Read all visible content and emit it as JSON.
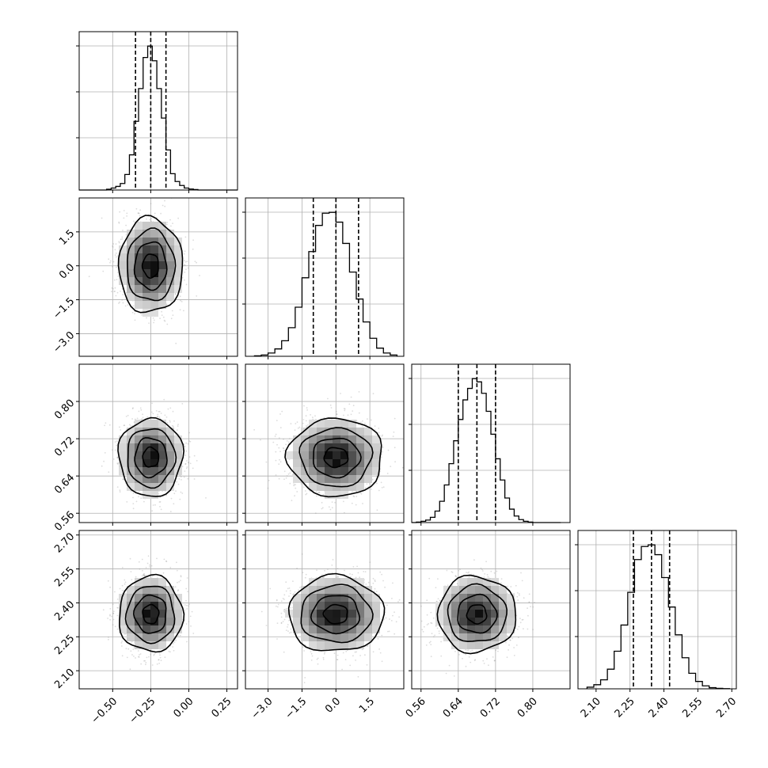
{
  "chart_data": {
    "type": "corner",
    "title": "",
    "parameters": [
      {
        "id": "p0",
        "mean": -0.25,
        "sd": 0.1,
        "range": [
          -0.72,
          0.32
        ],
        "ticks": [
          -0.5,
          -0.25,
          0.0,
          0.25
        ],
        "tick_labels": [
          "−0.50",
          "−0.25",
          "0.00",
          "0.25"
        ],
        "quantiles": [
          -0.35,
          -0.25,
          -0.15
        ],
        "hist_edges": [
          -0.72,
          -0.69,
          -0.66,
          -0.63,
          -0.6,
          -0.57,
          -0.54,
          -0.51,
          -0.48,
          -0.45,
          -0.42,
          -0.39,
          -0.36,
          -0.33,
          -0.3,
          -0.27,
          -0.24,
          -0.21,
          -0.18,
          -0.15,
          -0.12,
          -0.09,
          -0.06,
          -0.03,
          0.0,
          0.03,
          0.06,
          0.09,
          0.12,
          0.15,
          0.18,
          0.21,
          0.24,
          0.27,
          0.3,
          0.32
        ],
        "hist_counts": [
          0,
          0,
          0,
          0,
          0,
          0,
          5,
          12,
          22,
          40,
          95,
          215,
          420,
          620,
          810,
          880,
          790,
          620,
          440,
          245,
          100,
          52,
          28,
          12,
          6,
          3,
          0,
          0,
          0,
          0,
          0,
          0,
          0,
          0,
          0
        ]
      },
      {
        "id": "p1",
        "mean": 0.0,
        "sd": 1.0,
        "range": [
          -4.0,
          3.0
        ],
        "ticks": [
          -3.0,
          -1.5,
          0.0,
          1.5
        ],
        "tick_labels": [
          "−3.0",
          "−1.5",
          "0.0",
          "1.5"
        ],
        "quantiles": [
          -1.0,
          0.0,
          1.0
        ],
        "hist_edges": [
          -3.6,
          -3.3,
          -3.0,
          -2.7,
          -2.4,
          -2.1,
          -1.8,
          -1.5,
          -1.2,
          -0.9,
          -0.6,
          -0.3,
          0.0,
          0.3,
          0.6,
          0.9,
          1.2,
          1.5,
          1.8,
          2.1,
          2.4,
          2.7
        ],
        "hist_counts": [
          3,
          8,
          20,
          45,
          95,
          175,
          300,
          480,
          640,
          800,
          875,
          880,
          820,
          690,
          515,
          350,
          210,
          110,
          50,
          20,
          8
        ]
      },
      {
        "id": "p2",
        "mean": 0.68,
        "sd": 0.04,
        "range": [
          0.54,
          0.88
        ],
        "ticks": [
          0.56,
          0.64,
          0.72,
          0.8
        ],
        "tick_labels": [
          "0.56",
          "0.64",
          "0.72",
          "0.80"
        ],
        "quantiles": [
          0.64,
          0.68,
          0.72
        ],
        "hist_edges": [
          0.54,
          0.55,
          0.56,
          0.57,
          0.58,
          0.59,
          0.6,
          0.61,
          0.62,
          0.63,
          0.64,
          0.65,
          0.66,
          0.67,
          0.68,
          0.69,
          0.7,
          0.71,
          0.72,
          0.73,
          0.74,
          0.75,
          0.76,
          0.77,
          0.78,
          0.79,
          0.8,
          0.81,
          0.82,
          0.83,
          0.84,
          0.85,
          0.86
        ],
        "hist_counts": [
          0,
          3,
          8,
          15,
          32,
          70,
          130,
          230,
          360,
          500,
          630,
          750,
          820,
          880,
          860,
          790,
          680,
          540,
          390,
          260,
          150,
          82,
          40,
          18,
          8,
          3,
          0,
          0,
          0,
          0,
          0,
          0
        ]
      },
      {
        "id": "p3",
        "mean": 2.35,
        "sd": 0.08,
        "range": [
          2.02,
          2.72
        ],
        "ticks": [
          2.1,
          2.25,
          2.4,
          2.55,
          2.7
        ],
        "tick_labels": [
          "2.10",
          "2.25",
          "2.40",
          "2.55",
          "2.70"
        ],
        "quantiles": [
          2.265,
          2.345,
          2.425
        ],
        "hist_edges": [
          2.06,
          2.09,
          2.12,
          2.15,
          2.18,
          2.21,
          2.24,
          2.27,
          2.3,
          2.33,
          2.36,
          2.39,
          2.42,
          2.45,
          2.48,
          2.51,
          2.54,
          2.57,
          2.6,
          2.63,
          2.66,
          2.69
        ],
        "hist_counts": [
          10,
          25,
          55,
          120,
          230,
          390,
          590,
          790,
          870,
          880,
          820,
          680,
          500,
          330,
          190,
          95,
          45,
          18,
          7,
          3,
          1
        ]
      }
    ],
    "contour_levels_sigma": [
      0.5,
      1.0,
      1.5,
      2.0
    ],
    "grid": true
  }
}
